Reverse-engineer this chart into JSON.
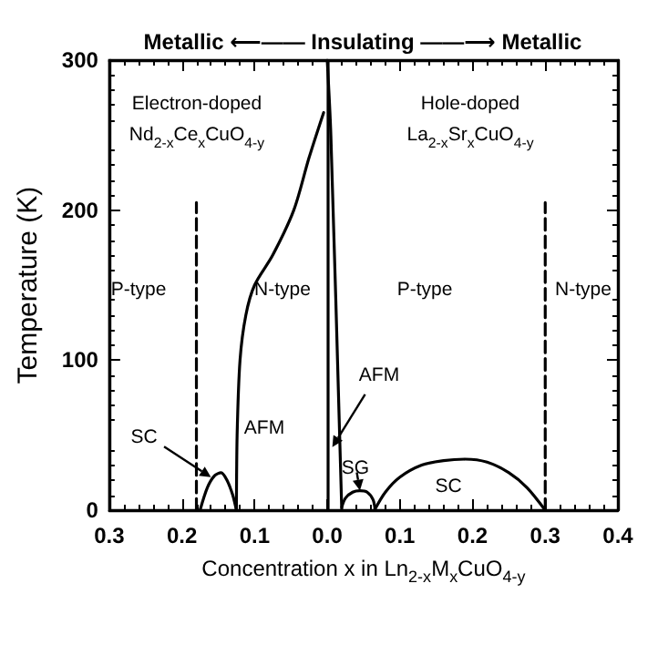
{
  "chart_data": {
    "type": "line",
    "title": "Metallic ⟵—— Insulating ——⟶ Metallic",
    "xlabel": "Concentration x in Ln$_{2-x}$M$_{x}$CuO$_{4-y}$",
    "ylabel": "Temperature (K)",
    "xlim": [
      -0.3,
      0.4
    ],
    "ylim": [
      0,
      300
    ],
    "xticks": [
      {
        "value": -0.3,
        "label": "0.3"
      },
      {
        "value": -0.2,
        "label": "0.2"
      },
      {
        "value": -0.1,
        "label": "0.1"
      },
      {
        "value": 0,
        "label": "0.0"
      },
      0.1,
      0.2,
      0.3,
      0.4
    ],
    "yticks": [
      0,
      100,
      200,
      300
    ],
    "grid": false,
    "marker": "none",
    "line_style": "solid",
    "series": [
      {
        "color": "#000000",
        "x": [
          -0.005,
          -0.025,
          -0.046,
          -0.075,
          -0.1,
          -0.112,
          -0.12,
          -0.124,
          -0.125
        ],
        "values": [
          265,
          235,
          200,
          170,
          150,
          130,
          100,
          50,
          0
        ]
      },
      {
        "color": "#000000",
        "x": [
          0,
          0.005,
          0.02
        ],
        "values": [
          300,
          250,
          0
        ]
      },
      {
        "color": "#000000",
        "x": [
          -0.175,
          -0.165,
          -0.155,
          -0.146,
          -0.138,
          -0.13,
          -0.125
        ],
        "values": [
          0,
          15,
          23,
          25,
          20,
          10,
          0
        ]
      },
      {
        "color": "#000000",
        "x": [
          0.02,
          0.025,
          0.035,
          0.045,
          0.055,
          0.063,
          0.066
        ],
        "values": [
          2,
          8,
          12,
          13,
          12,
          7,
          0
        ]
      },
      {
        "color": "#000000",
        "x": [
          0.065,
          0.08,
          0.1,
          0.13,
          0.16,
          0.19,
          0.22,
          0.25,
          0.275,
          0.3
        ],
        "values": [
          0,
          12,
          22,
          30,
          33,
          34,
          32,
          25,
          15,
          0
        ]
      },
      {
        "color": "#000000",
        "line_style": "dashed",
        "x": [
          -0.18,
          -0.18
        ],
        "values": [
          0,
          205
        ]
      },
      {
        "color": "#000000",
        "line_style": "dashed",
        "x": [
          0.3,
          0.3
        ],
        "values": [
          0,
          205
        ]
      }
    ],
    "ref_lines": [
      {
        "axis": "x",
        "value": 0,
        "color": "#000000",
        "line_style": "solid"
      }
    ],
    "annotations": [
      "Electron-doped",
      "Nd$_{2-x}$Ce$_{x}$CuO$_{4-y}$",
      "Hole-doped",
      "La$_{2-x}$Sr$_{x}$CuO$_{4-y}$",
      "P-type",
      "N-type",
      "P-type",
      "N-type",
      "AFM",
      {
        "text": "SC",
        "x": -0.16,
        "y": 22
      },
      {
        "text": "AFM",
        "x": 0.007,
        "y": 42
      },
      {
        "text": "SG",
        "x": 0.045,
        "y": 13
      },
      "SC"
    ]
  }
}
